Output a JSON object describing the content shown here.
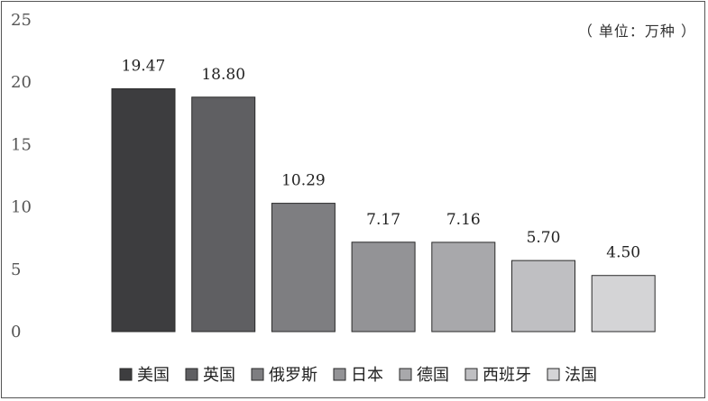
{
  "chart_data": {
    "type": "bar",
    "unit_note": "（ 单位：万种 ）",
    "categories": [
      "美国",
      "英国",
      "俄罗斯",
      "日本",
      "德国",
      "西班牙",
      "法国"
    ],
    "values": [
      19.47,
      18.8,
      10.29,
      7.17,
      7.16,
      5.7,
      4.5
    ],
    "value_labels": [
      "19.47",
      "18.80",
      "10.29",
      "7.17",
      "7.16",
      "5.70",
      "4.50"
    ],
    "colors": [
      "#3d3d3f",
      "#5f5f62",
      "#7e7e81",
      "#939396",
      "#a8a8ab",
      "#bfbfc2",
      "#d4d4d6"
    ],
    "yticks": [
      "0",
      "5",
      "10",
      "15",
      "20",
      "25"
    ],
    "ylim": [
      0,
      25
    ],
    "grid": false,
    "legend_position": "bottom"
  }
}
